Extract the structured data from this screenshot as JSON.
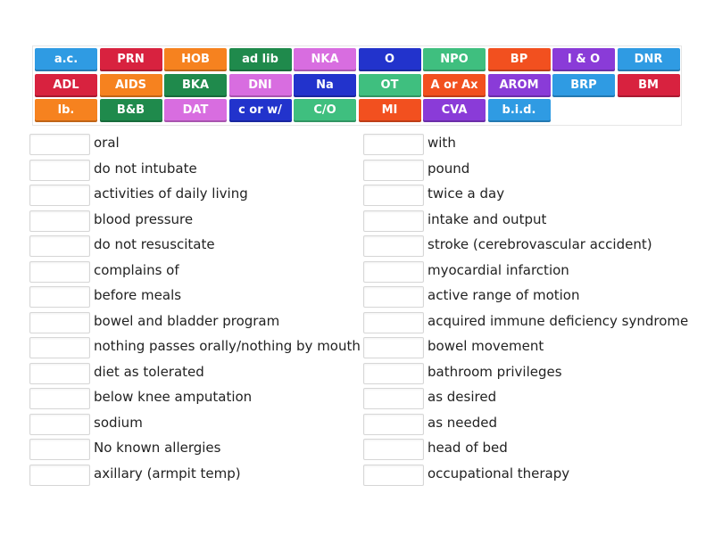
{
  "tiles": [
    {
      "label": "a.c.",
      "color": "#2f9be3"
    },
    {
      "label": "PRN",
      "color": "#d8223f"
    },
    {
      "label": "HOB",
      "color": "#f6821f"
    },
    {
      "label": "ad lib",
      "color": "#1f8a4c"
    },
    {
      "label": "NKA",
      "color": "#d86de0"
    },
    {
      "label": "O",
      "color": "#2233cc"
    },
    {
      "label": "NPO",
      "color": "#3fbf7f"
    },
    {
      "label": "BP",
      "color": "#f2501f"
    },
    {
      "label": "I & O",
      "color": "#8a3bd8"
    },
    {
      "label": "DNR",
      "color": "#2f9be3"
    },
    {
      "label": "ADL",
      "color": "#d8223f"
    },
    {
      "label": "AIDS",
      "color": "#f6821f"
    },
    {
      "label": "BKA",
      "color": "#1f8a4c"
    },
    {
      "label": "DNI",
      "color": "#d86de0"
    },
    {
      "label": "Na",
      "color": "#2233cc"
    },
    {
      "label": "OT",
      "color": "#3fbf7f"
    },
    {
      "label": "A or Ax",
      "color": "#f2501f"
    },
    {
      "label": "AROM",
      "color": "#8a3bd8"
    },
    {
      "label": "BRP",
      "color": "#2f9be3"
    },
    {
      "label": "BM",
      "color": "#d8223f"
    },
    {
      "label": "lb.",
      "color": "#f6821f"
    },
    {
      "label": "B&B",
      "color": "#1f8a4c"
    },
    {
      "label": "DAT",
      "color": "#d86de0"
    },
    {
      "label": "c or w/",
      "color": "#2233cc"
    },
    {
      "label": "C/O",
      "color": "#3fbf7f"
    },
    {
      "label": "MI",
      "color": "#f2501f"
    },
    {
      "label": "CVA",
      "color": "#8a3bd8"
    },
    {
      "label": "b.i.d.",
      "color": "#2f9be3"
    }
  ],
  "left_definitions": [
    "oral",
    "do not intubate",
    "activities of daily living",
    "blood pressure",
    "do not resuscitate",
    "complains of",
    "before meals",
    "bowel and bladder program",
    "nothing passes orally/nothing by mouth",
    "diet as tolerated",
    "below knee amputation",
    "sodium",
    "No known allergies",
    "axillary (armpit temp)"
  ],
  "right_definitions": [
    "with",
    "pound",
    "twice a day",
    "intake and output",
    "stroke (cerebrovascular accident)",
    "myocardial infarction",
    "active range of motion",
    "acquired immune deficiency syndrome",
    "bowel movement",
    "bathroom privileges",
    "as desired",
    "as needed",
    "head of bed",
    "occupational therapy"
  ]
}
